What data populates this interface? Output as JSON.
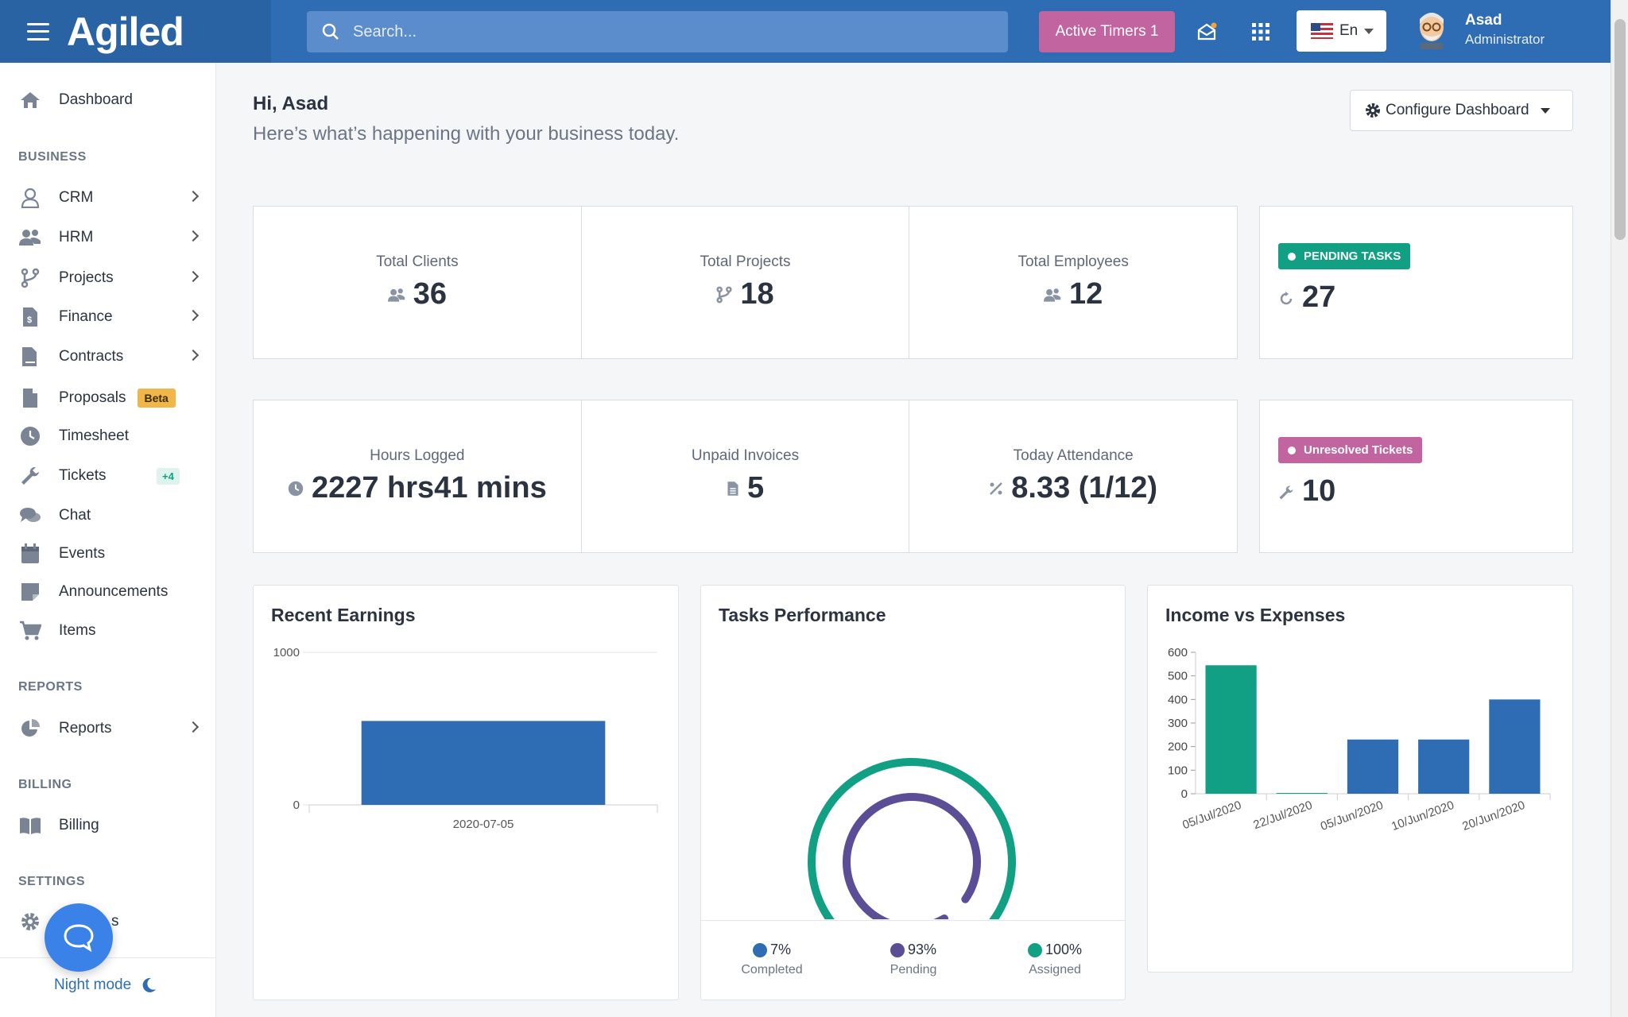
{
  "app": {
    "logo": "Agiled"
  },
  "topbar": {
    "search_placeholder": "Search...",
    "timers_label": "Active Timers 1",
    "lang_label": "En",
    "user_name": "Asad",
    "user_role": "Administrator"
  },
  "sidebar": {
    "dashboard": "Dashboard",
    "business_label": "BUSINESS",
    "crm": "CRM",
    "hrm": "HRM",
    "projects": "Projects",
    "finance": "Finance",
    "contracts": "Contracts",
    "proposals": "Proposals",
    "proposals_badge": "Beta",
    "timesheet": "Timesheet",
    "tickets": "Tickets",
    "tickets_badge": "+4",
    "chat": "Chat",
    "events": "Events",
    "announcements": "Announcements",
    "items": "Items",
    "reports_label": "REPORTS",
    "reports": "Reports",
    "billing_label": "BILLING",
    "billing": "Billing",
    "settings_label": "SETTINGS",
    "settings_partial": "s",
    "night_mode": "Night mode"
  },
  "header": {
    "greeting": "Hi, Asad",
    "subtitle": "Here’s what’s happening with your business today.",
    "configure": "Configure Dashboard"
  },
  "stats": {
    "total_clients_label": "Total Clients",
    "total_clients": "36",
    "total_projects_label": "Total Projects",
    "total_projects": "18",
    "total_employees_label": "Total Employees",
    "total_employees": "12",
    "pending_tasks_label": "PENDING TASKS",
    "pending_tasks": "27",
    "hours_logged_label": "Hours Logged",
    "hours_logged": "2227 hrs41 mins",
    "unpaid_invoices_label": "Unpaid Invoices",
    "unpaid_invoices": "5",
    "attendance_label": "Today Attendance",
    "attendance": "8.33 (1/12)",
    "unresolved_label": "Unresolved Tickets",
    "unresolved": "10"
  },
  "colors": {
    "primary": "#2e6db4",
    "teal": "#11a084",
    "purple": "#5b4e96",
    "pink": "#c2649f"
  },
  "chart_data": [
    {
      "type": "bar",
      "title": "Recent Earnings",
      "categories": [
        "2020-07-05"
      ],
      "values": [
        550
      ],
      "ylim": [
        0,
        1000
      ],
      "yticks": [
        "0",
        "1000"
      ]
    },
    {
      "type": "pie",
      "title": "Tasks Performance",
      "series": [
        {
          "name": "Completed",
          "value": 7,
          "label": "7%",
          "color": "#2e6db4"
        },
        {
          "name": "Pending",
          "value": 93,
          "label": "93%",
          "color": "#5b4e96"
        },
        {
          "name": "Assigned",
          "value": 100,
          "label": "100%",
          "color": "#11a084"
        }
      ]
    },
    {
      "type": "bar",
      "title": "Income vs Expenses",
      "categories": [
        "05/Jul/2020",
        "22/Jul/2020",
        "05/Jun/2020",
        "10/Jun/2020",
        "20/Jun/2020"
      ],
      "values": [
        545,
        0,
        230,
        230,
        400
      ],
      "colors": [
        "#11a084",
        "#11a084",
        "#2e6db4",
        "#2e6db4",
        "#2e6db4"
      ],
      "ylim": [
        0,
        600
      ],
      "yticks": [
        "0",
        "100",
        "200",
        "300",
        "400",
        "500",
        "600"
      ]
    }
  ]
}
